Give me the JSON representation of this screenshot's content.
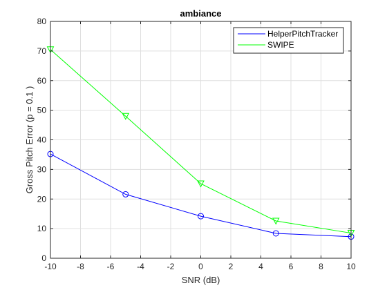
{
  "chart_data": {
    "type": "line",
    "title": "ambiance",
    "xlabel": "SNR (dB)",
    "ylabel": "Gross Pitch Error (p = 0.1 )",
    "xlim": [
      -10,
      10
    ],
    "ylim": [
      0,
      80
    ],
    "xticks": [
      -10,
      -8,
      -6,
      -4,
      -2,
      0,
      2,
      4,
      6,
      8,
      10
    ],
    "yticks": [
      0,
      10,
      20,
      30,
      40,
      50,
      60,
      70,
      80
    ],
    "grid": true,
    "legend_position": "top-right",
    "x": [
      -10,
      -5,
      0,
      5,
      10
    ],
    "series": [
      {
        "name": "HelperPitchTracker",
        "color": "#0000ff",
        "marker": "circle",
        "values": [
          35.2,
          21.6,
          14.2,
          8.4,
          7.3
        ]
      },
      {
        "name": "SWIPE",
        "color": "#00ff00",
        "marker": "triangle-down",
        "values": [
          70.5,
          48.0,
          25.2,
          12.6,
          8.5
        ]
      }
    ]
  }
}
